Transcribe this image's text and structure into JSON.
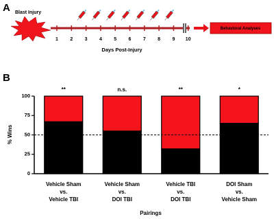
{
  "panel_a": {
    "letter": "A",
    "injury": "Blast Injury",
    "days": [
      1,
      2,
      3,
      4,
      5,
      6,
      7,
      8,
      9,
      10
    ],
    "axis_label": "Days Post-Injury",
    "outcome": "Behavioral Analyses"
  },
  "chart_data": {
    "type": "stacked-bar",
    "letter": "B",
    "ylabel": "% Wins",
    "xlabel": "Pairings",
    "categories": [
      [
        "Vehicle Sham",
        "vs.",
        "Vehicle TBI"
      ],
      [
        "Vehicle Sham",
        "vs.",
        "DOI TBI"
      ],
      [
        "Vehicle TBI",
        "vs.",
        "DOI TBI"
      ],
      [
        "DOI Sham",
        "vs.",
        "Vehicle Sham"
      ]
    ],
    "category_colors": [
      "#000000",
      "#000000",
      "#e8141a"
    ],
    "series": [
      {
        "color": "#000000",
        "values": [
          67,
          55,
          32,
          65
        ]
      },
      {
        "color": "#f5141c",
        "values": [
          33,
          45,
          68,
          35
        ]
      }
    ],
    "annotations": [
      "**",
      "n.s.",
      "**",
      "*"
    ],
    "reference_line": 50,
    "ylim": [
      0,
      100
    ],
    "yticks": [
      0,
      25,
      50,
      75,
      100
    ]
  }
}
